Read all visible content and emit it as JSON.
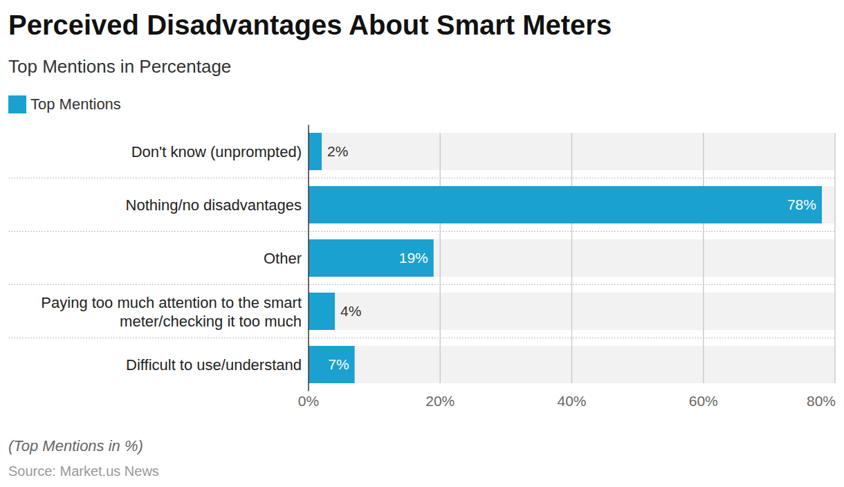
{
  "chart_data": {
    "type": "bar",
    "orientation": "horizontal",
    "title": "Perceived Disadvantages About Smart Meters",
    "subtitle": "Top Mentions in Percentage",
    "caption": "(Top Mentions in %)",
    "source": "Source: Market.us News",
    "categories": [
      "Don't know (unprompted)",
      "Nothing/no disadvantages",
      "Other",
      "Paying too much attention to the smart meter/checking it too much",
      "Difficult to use/understand"
    ],
    "series": [
      {
        "name": "Top Mentions",
        "color": "#1ba1cf",
        "values": [
          2,
          78,
          19,
          4,
          7
        ],
        "value_labels": [
          "2%",
          "78%",
          "19%",
          "4%",
          "7%"
        ]
      }
    ],
    "xlim": [
      0,
      80
    ],
    "xticks": [
      {
        "value": 0,
        "label": "0%"
      },
      {
        "value": 20,
        "label": "20%"
      },
      {
        "value": 40,
        "label": "40%"
      },
      {
        "value": 60,
        "label": "60%"
      },
      {
        "value": 80,
        "label": "80%"
      }
    ],
    "grid": true,
    "data_labels": true,
    "legend": "top-left"
  }
}
